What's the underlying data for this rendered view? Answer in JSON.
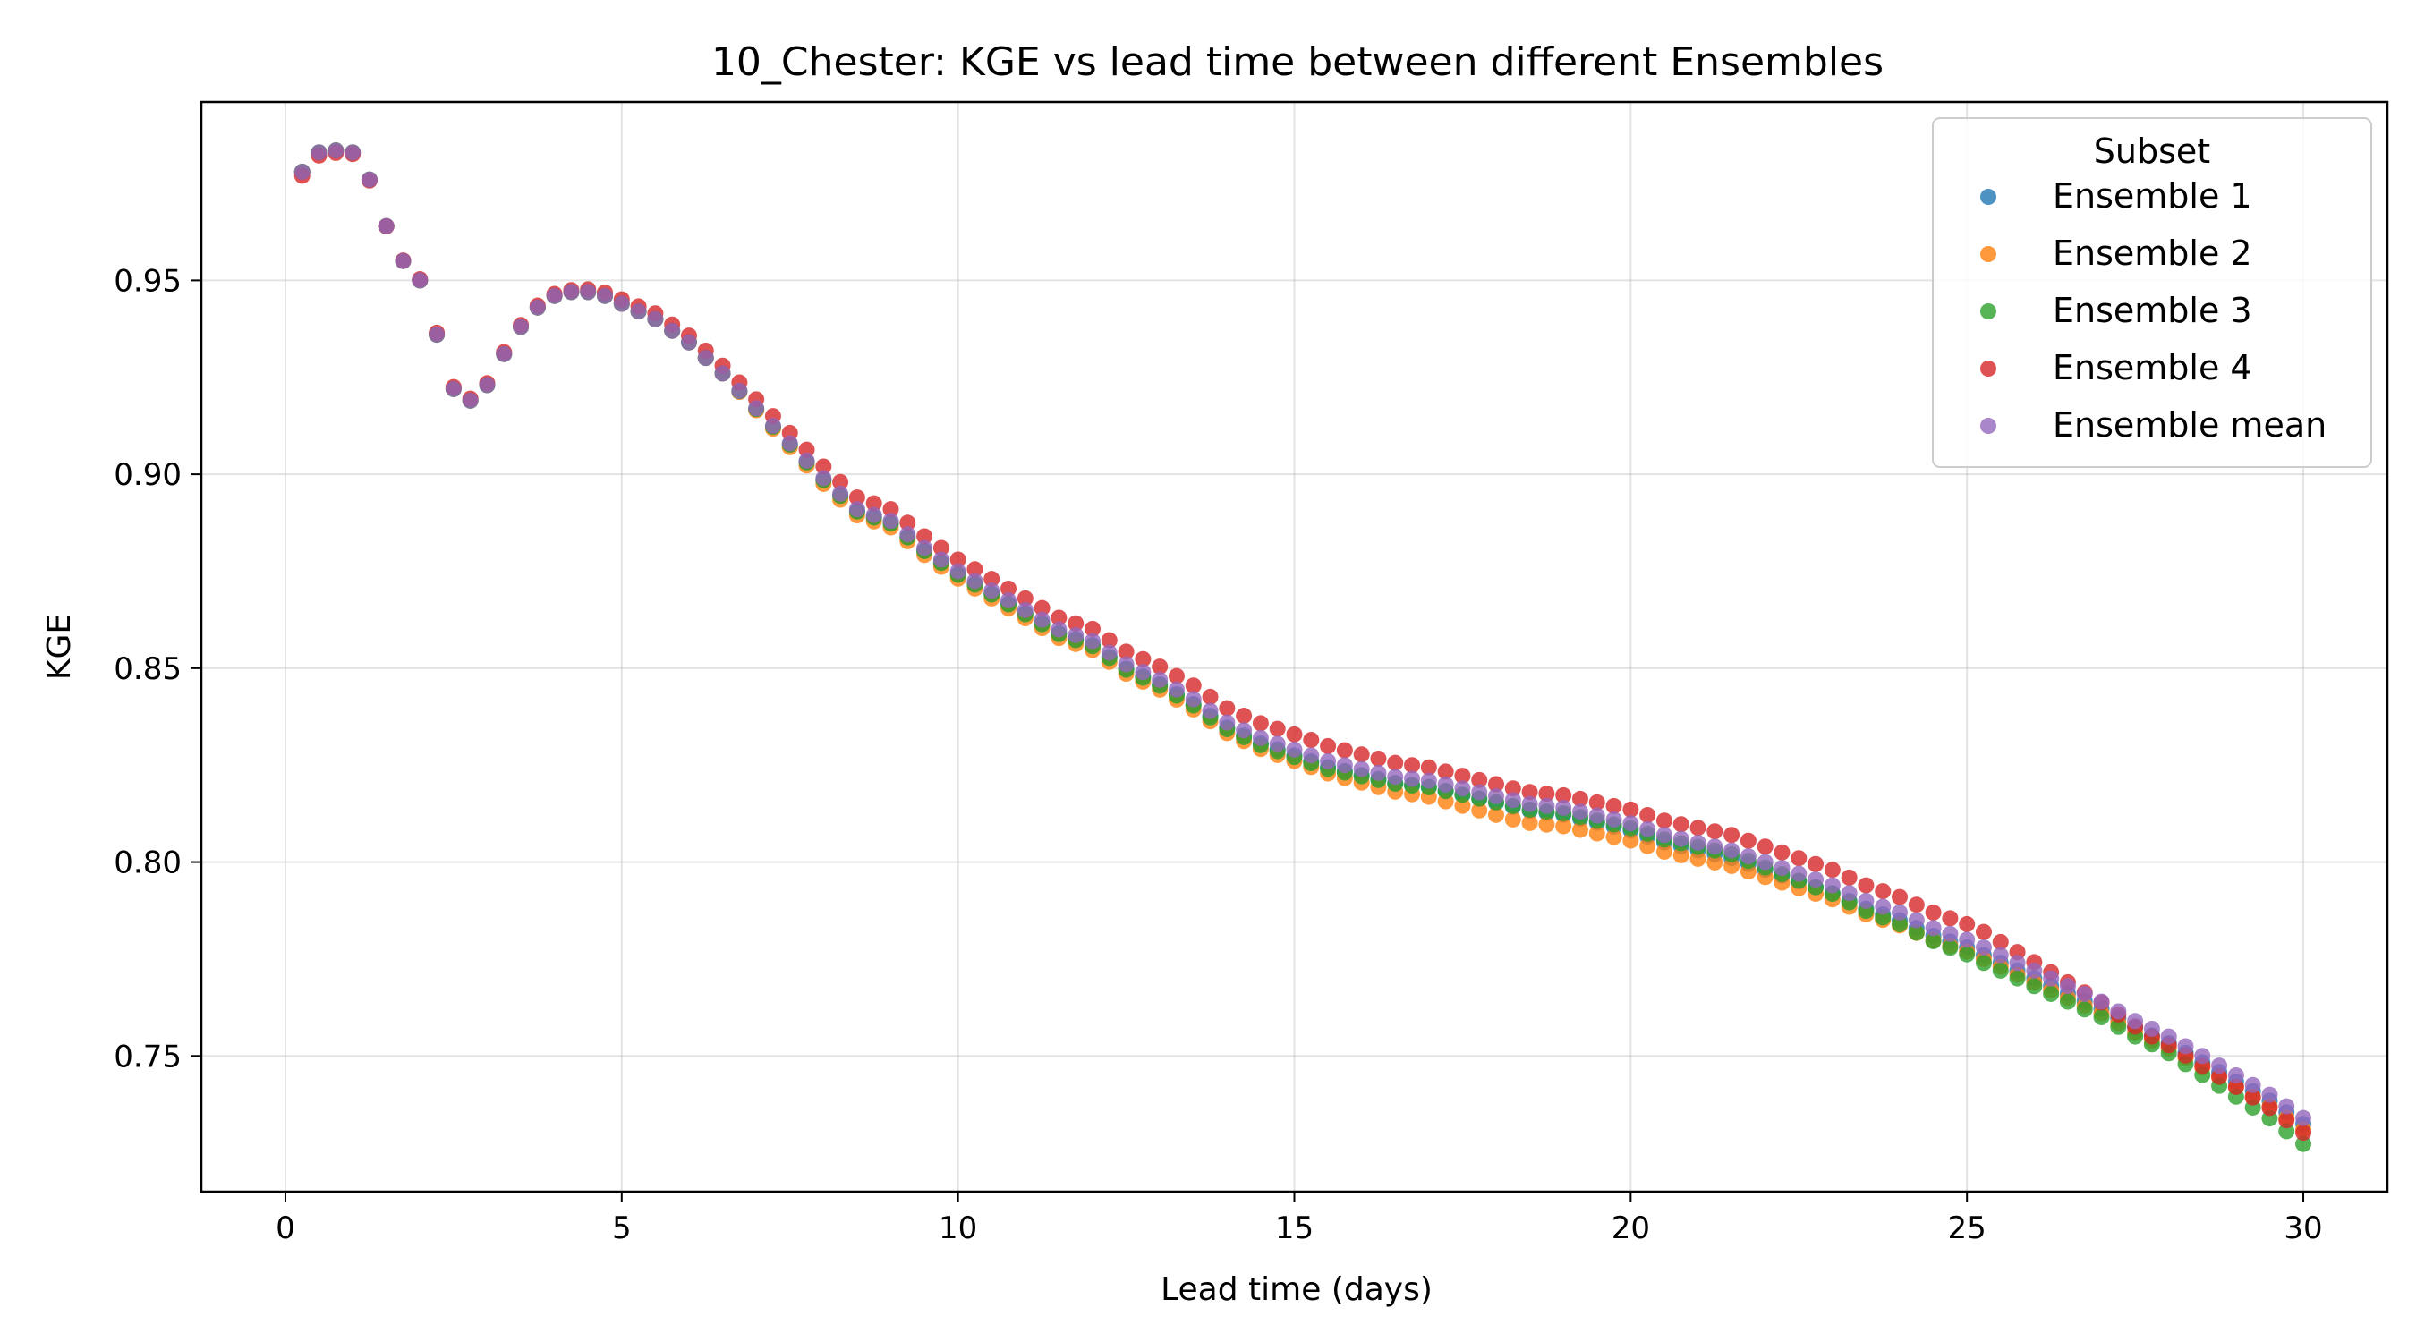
{
  "chart_data": {
    "type": "scatter",
    "title": "10_Chester: KGE vs lead time between different Ensembles",
    "xlabel": "Lead time (days)",
    "ylabel": "KGE",
    "xlim": [
      -1.25,
      31.25
    ],
    "ylim": [
      0.715,
      0.996
    ],
    "xticks": [
      0,
      5,
      10,
      15,
      20,
      25,
      30
    ],
    "xtick_labels": [
      "0",
      "5",
      "10",
      "15",
      "20",
      "25",
      "30"
    ],
    "yticks": [
      0.75,
      0.8,
      0.85,
      0.9,
      0.95
    ],
    "ytick_labels": [
      "0.75",
      "0.80",
      "0.85",
      "0.90",
      "0.95"
    ],
    "grid": true,
    "legend_position": "top-right",
    "legend_title": "Subset",
    "x_step": 0.25,
    "x_start": 0.25,
    "series": [
      {
        "name": "Ensemble 1",
        "color": "#1f77b4",
        "offsets": [
          [
            0,
            0
          ],
          [
            16,
            0
          ],
          [
            21,
            0
          ],
          [
            25,
            0
          ],
          [
            31,
            -0.0005
          ],
          [
            60,
            -0.0015
          ],
          [
            85,
            -0.002
          ],
          [
            100,
            -0.002
          ],
          [
            120,
            -0.0015
          ]
        ]
      },
      {
        "name": "Ensemble 2",
        "color": "#ff7f0e",
        "offsets": [
          [
            0,
            0
          ],
          [
            16,
            0
          ],
          [
            21,
            0
          ],
          [
            25,
            0
          ],
          [
            31,
            -0.0015
          ],
          [
            60,
            -0.003
          ],
          [
            72,
            -0.005
          ],
          [
            85,
            -0.004
          ],
          [
            100,
            -0.003
          ],
          [
            120,
            -0.003
          ]
        ]
      },
      {
        "name": "Ensemble 3",
        "color": "#2ca02c",
        "offsets": [
          [
            0,
            0
          ],
          [
            16,
            0
          ],
          [
            21,
            0
          ],
          [
            25,
            0
          ],
          [
            31,
            -0.0005
          ],
          [
            60,
            -0.002
          ],
          [
            85,
            -0.001
          ],
          [
            100,
            -0.004
          ],
          [
            110,
            -0.004
          ],
          [
            120,
            -0.007
          ]
        ]
      },
      {
        "name": "Ensemble 4",
        "color": "#d62728",
        "offsets": [
          [
            0,
            -0.001
          ],
          [
            8,
            0.0005
          ],
          [
            16,
            0.0005
          ],
          [
            21,
            0.0015
          ],
          [
            25,
            0.002
          ],
          [
            31,
            0.003
          ],
          [
            45,
            0.003
          ],
          [
            60,
            0.004
          ],
          [
            72,
            0.003
          ],
          [
            85,
            0.004
          ],
          [
            100,
            0.004
          ],
          [
            110,
            -0.002
          ],
          [
            120,
            -0.004
          ]
        ]
      },
      {
        "name": "Ensemble mean",
        "color": "#9467bd",
        "offsets": [
          [
            0,
            0
          ],
          [
            120,
            0
          ]
        ]
      }
    ],
    "base_curve": [
      [
        0.25,
        0.978
      ],
      [
        0.5,
        0.983
      ],
      [
        0.75,
        0.9835
      ],
      [
        1.0,
        0.983
      ],
      [
        1.25,
        0.976
      ],
      [
        1.5,
        0.964
      ],
      [
        1.75,
        0.955
      ],
      [
        2.0,
        0.95
      ],
      [
        2.25,
        0.936
      ],
      [
        2.5,
        0.922
      ],
      [
        2.75,
        0.919
      ],
      [
        3.0,
        0.923
      ],
      [
        3.25,
        0.931
      ],
      [
        3.5,
        0.938
      ],
      [
        3.75,
        0.943
      ],
      [
        4.0,
        0.946
      ],
      [
        4.25,
        0.947
      ],
      [
        4.5,
        0.947
      ],
      [
        4.75,
        0.946
      ],
      [
        5.0,
        0.944
      ],
      [
        5.5,
        0.94
      ],
      [
        6.0,
        0.934
      ],
      [
        6.5,
        0.926
      ],
      [
        7.0,
        0.917
      ],
      [
        7.5,
        0.908
      ],
      [
        8.0,
        0.899
      ],
      [
        8.5,
        0.891
      ],
      [
        9.0,
        0.888
      ],
      [
        9.5,
        0.881
      ],
      [
        10.0,
        0.875
      ],
      [
        10.5,
        0.87
      ],
      [
        11.0,
        0.865
      ],
      [
        11.5,
        0.86
      ],
      [
        12.0,
        0.857
      ],
      [
        12.5,
        0.851
      ],
      [
        13.0,
        0.847
      ],
      [
        13.5,
        0.842
      ],
      [
        14.0,
        0.836
      ],
      [
        14.5,
        0.832
      ],
      [
        15.0,
        0.829
      ],
      [
        15.5,
        0.826
      ],
      [
        16.0,
        0.824
      ],
      [
        16.5,
        0.822
      ],
      [
        17.0,
        0.821
      ],
      [
        17.5,
        0.819
      ],
      [
        18.0,
        0.817
      ],
      [
        18.5,
        0.815
      ],
      [
        19.0,
        0.814
      ],
      [
        19.5,
        0.812
      ],
      [
        20.0,
        0.81
      ],
      [
        20.5,
        0.807
      ],
      [
        21.0,
        0.805
      ],
      [
        21.5,
        0.803
      ],
      [
        22.0,
        0.8
      ],
      [
        22.5,
        0.797
      ],
      [
        23.0,
        0.794
      ],
      [
        23.5,
        0.79
      ],
      [
        24.0,
        0.787
      ],
      [
        24.5,
        0.783
      ],
      [
        25.0,
        0.78
      ],
      [
        25.5,
        0.776
      ],
      [
        26.0,
        0.772
      ],
      [
        26.5,
        0.768
      ],
      [
        27.0,
        0.764
      ],
      [
        27.5,
        0.759
      ],
      [
        28.0,
        0.755
      ],
      [
        28.5,
        0.75
      ],
      [
        29.0,
        0.745
      ],
      [
        29.5,
        0.74
      ],
      [
        30.0,
        0.734
      ]
    ]
  }
}
